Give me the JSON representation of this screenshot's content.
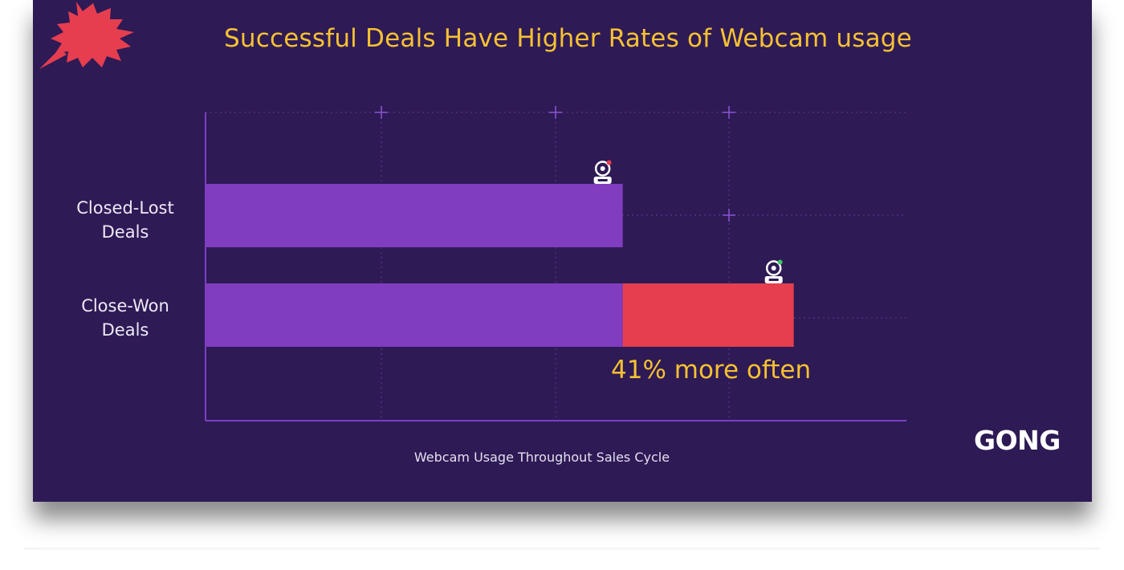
{
  "chart_data": {
    "type": "bar",
    "orientation": "horizontal",
    "stacked": true,
    "title": "Successful Deals Have Higher Rates of Webcam usage",
    "xlabel": "Webcam Usage Throughout Sales Cycle",
    "ylabel": "",
    "categories": [
      "Closed-Lost\nDeals",
      "Close-Won\nDeals"
    ],
    "series": [
      {
        "values": [
          100,
          100
        ],
        "color": "#803dbf"
      },
      {
        "values": [
          0,
          41
        ],
        "color": "#e63e4f"
      }
    ],
    "xlim": [
      0,
      168
    ],
    "grid": true,
    "annotations": [
      {
        "text": "41% more often",
        "category": "Close-Won\nDeals"
      }
    ],
    "marker_icon": "webcam-icon",
    "marker_dot_colors": [
      "#e63e4f",
      "#3cc36b"
    ]
  },
  "brand": {
    "logo_text": "GONG",
    "logo_color": "#e63e4f"
  },
  "colors": {
    "background": "#2e1a55",
    "title": "#f6c132",
    "axis": "#7b3fc4"
  }
}
